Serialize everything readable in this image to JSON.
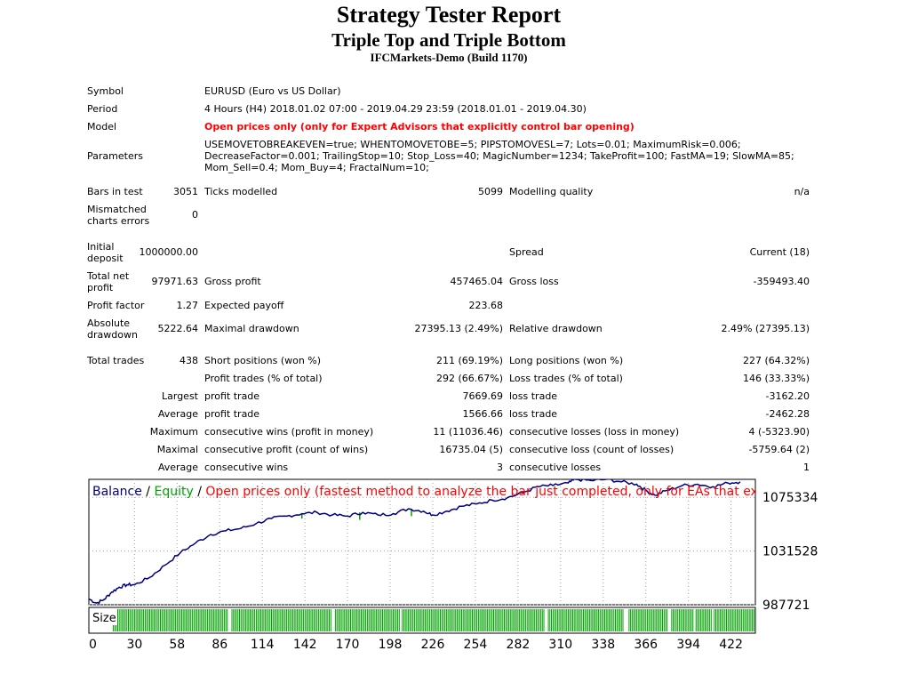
{
  "header": {
    "title": "Strategy Tester Report",
    "subtitle": "Triple Top and Triple Bottom",
    "server": "IFCMarkets-Demo (Build 1170)"
  },
  "info": {
    "symbol_label": "Symbol",
    "symbol_value": "EURUSD (Euro vs US Dollar)",
    "period_label": "Period",
    "period_value": "4 Hours (H4) 2018.01.02 07:00 - 2019.04.29 23:59 (2018.01.01 - 2019.04.30)",
    "model_label": "Model",
    "model_value": "Open prices only (only for Expert Advisors that explicitly control bar opening)",
    "parameters_label": "Parameters",
    "parameters_value": "USEMOVETOBREAKEVEN=true; WHENTOMOVETOBE=5; PIPSTOMOVESL=7; Lots=0.01; MaximumRisk=0.006; DecreaseFactor=0.001; TrailingStop=10; Stop_Loss=40; MagicNumber=1234; TakeProfit=100; FastMA=19; SlowMA=85; Mom_Sell=0.4; Mom_Buy=4; FractalNum=10;"
  },
  "quality": {
    "bars_label": "Bars in test",
    "bars_value": "3051",
    "ticks_label": "Ticks modelled",
    "ticks_value": "5099",
    "mq_label": "Modelling quality",
    "mq_value": "n/a",
    "mismatch_label_1": "Mismatched",
    "mismatch_label_2": "charts errors",
    "mismatch_value": "0"
  },
  "results": {
    "init_dep_label_1": "Initial",
    "init_dep_label_2": "deposit",
    "init_dep_value": "1000000.00",
    "spread_label": "Spread",
    "spread_value": "Current (18)",
    "net_profit_label_1": "Total net",
    "net_profit_label_2": "profit",
    "net_profit_value": "97971.63",
    "gross_profit_label": "Gross profit",
    "gross_profit_value": "457465.04",
    "gross_loss_label": "Gross loss",
    "gross_loss_value": "-359493.40",
    "profit_factor_label": "Profit factor",
    "profit_factor_value": "1.27",
    "expected_payoff_label": "Expected payoff",
    "expected_payoff_value": "223.68",
    "abs_dd_label_1": "Absolute",
    "abs_dd_label_2": "drawdown",
    "abs_dd_value": "5222.64",
    "max_dd_label": "Maximal drawdown",
    "max_dd_value": "27395.13 (2.49%)",
    "rel_dd_label": "Relative drawdown",
    "rel_dd_value": "2.49% (27395.13)"
  },
  "trades": {
    "total_label": "Total trades",
    "total_value": "438",
    "short_label": "Short positions (won %)",
    "short_value": "211 (69.19%)",
    "long_label": "Long positions (won %)",
    "long_value": "227 (64.32%)",
    "profit_trades_label": "Profit trades (% of total)",
    "profit_trades_value": "292 (66.67%)",
    "loss_trades_label": "Loss trades (% of total)",
    "loss_trades_value": "146 (33.33%)",
    "largest_label": "Largest",
    "largest_profit_label": "profit trade",
    "largest_profit_value": "7669.69",
    "largest_loss_label": "loss trade",
    "largest_loss_value": "-3162.20",
    "average_label": "Average",
    "average_profit_label": "profit trade",
    "average_profit_value": "1566.66",
    "average_loss_label": "loss trade",
    "average_loss_value": "-2462.28",
    "maximum_label": "Maximum",
    "max_cons_wins_label": "consecutive wins (profit in money)",
    "max_cons_wins_value": "11 (11036.46)",
    "max_cons_losses_label": "consecutive losses (loss in money)",
    "max_cons_losses_value": "4 (-5323.90)",
    "maximal_label": "Maximal",
    "maximal_cons_profit_label": "consecutive profit (count of wins)",
    "maximal_cons_profit_value": "16735.04 (5)",
    "maximal_cons_loss_label": "consecutive loss (count of losses)",
    "maximal_cons_loss_value": "-5759.64 (2)",
    "average2_label": "Average",
    "avg_cons_wins_label": "consecutive wins",
    "avg_cons_wins_value": "3",
    "avg_cons_losses_label": "consecutive losses",
    "avg_cons_losses_value": "1"
  },
  "chart_data": {
    "type": "line",
    "legend": {
      "balance": "Balance",
      "sep1": " / ",
      "equity": "Equity",
      "sep2": " / ",
      "model_note": "Open prices only (fastest method to analyze the bar just completed, only for EAs that explicitly control b"
    },
    "series": [
      {
        "name": "Balance",
        "x": [
          0,
          5,
          10,
          15,
          20,
          25,
          30,
          40,
          50,
          60,
          70,
          80,
          90,
          100,
          110,
          120,
          130,
          140,
          150,
          160,
          170,
          180,
          190,
          200,
          210,
          220,
          226,
          235,
          245,
          255,
          265,
          275,
          285,
          295,
          305,
          315,
          320,
          330,
          340,
          350,
          360,
          366,
          372,
          380,
          390,
          400,
          410,
          420,
          428
        ],
        "values": [
          992500,
          989000,
          992000,
          998000,
          1002000,
          1004000,
          1004000,
          1010000,
          1020000,
          1030000,
          1038000,
          1045000,
          1048000,
          1050000,
          1054000,
          1058000,
          1060000,
          1062000,
          1063000,
          1061000,
          1060000,
          1063000,
          1061000,
          1062000,
          1066000,
          1064000,
          1061000,
          1064000,
          1068000,
          1070000,
          1073000,
          1075000,
          1079000,
          1084000,
          1085000,
          1087000,
          1090000,
          1089000,
          1090000,
          1088000,
          1086000,
          1081000,
          1077000,
          1081000,
          1085000,
          1086000,
          1084000,
          1087000,
          1088000
        ]
      },
      {
        "name": "Equity",
        "dips": [
          {
            "x": 140,
            "values": [
              1062000,
              1058000
            ]
          },
          {
            "x": 178,
            "values": [
              1063000,
              1057000
            ]
          },
          {
            "x": 212,
            "values": [
              1066000,
              1060000
            ]
          }
        ]
      }
    ],
    "x_ticks": [
      "0",
      "30",
      "58",
      "86",
      "114",
      "142",
      "170",
      "198",
      "226",
      "254",
      "282",
      "310",
      "338",
      "366",
      "394",
      "422"
    ],
    "x_tick_values": [
      0,
      30,
      58,
      86,
      114,
      142,
      170,
      198,
      226,
      254,
      282,
      310,
      338,
      366,
      394,
      422
    ],
    "y_ticks": [
      "1075334",
      "1031528",
      "987721"
    ],
    "y_tick_values": [
      1075334,
      1031528,
      987721
    ],
    "xlim": [
      0,
      438
    ],
    "ylim": [
      987721,
      1090000
    ],
    "size_label": "Size",
    "grid": true
  }
}
